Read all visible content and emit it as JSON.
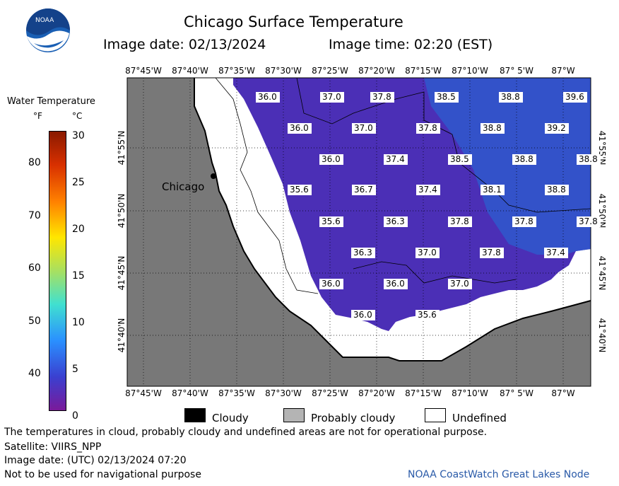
{
  "header": {
    "logo_text": "NOAA",
    "title": "Chicago Surface Temperature",
    "image_date": "Image date: 02/13/2024",
    "image_time": "Image time: 02:20 (EST)"
  },
  "colorbar": {
    "title": "Water Temperature",
    "unit_f": "°F",
    "unit_c": "°C",
    "f_ticks": [
      "80",
      "70",
      "60",
      "50",
      "40"
    ],
    "c_ticks": [
      "30",
      "25",
      "20",
      "15",
      "10",
      "5",
      "0"
    ]
  },
  "map": {
    "city_label": "Chicago",
    "lon_labels": [
      "87°45'W",
      "87°40'W",
      "87°35'W",
      "87°30'W",
      "87°25'W",
      "87°20'W",
      "87°15'W",
      "87°10'W",
      "87° 5'W",
      "87°W"
    ],
    "lat_labels": [
      "41°55'N",
      "41°50'N",
      "41°45'N",
      "41°40'N"
    ],
    "colors": {
      "land": "#787878",
      "water": "#4b2fb6",
      "water_east": "#2f58cc",
      "undefined": "#ffffff"
    },
    "temperature_labels": [
      {
        "value": "36.0",
        "row": 0,
        "col": 0
      },
      {
        "value": "37.0",
        "row": 0,
        "col": 1
      },
      {
        "value": "37.8",
        "row": 0,
        "col": 2
      },
      {
        "value": "38.5",
        "row": 0,
        "col": 3
      },
      {
        "value": "38.8",
        "row": 0,
        "col": 4
      },
      {
        "value": "39.6",
        "row": 0,
        "col": 5
      },
      {
        "value": "36.0",
        "row": 1,
        "col": 0
      },
      {
        "value": "37.0",
        "row": 1,
        "col": 1
      },
      {
        "value": "37.8",
        "row": 1,
        "col": 2
      },
      {
        "value": "38.8",
        "row": 1,
        "col": 3
      },
      {
        "value": "39.2",
        "row": 1,
        "col": 4
      },
      {
        "value": "36.0",
        "row": 2,
        "col": 0
      },
      {
        "value": "37.4",
        "row": 2,
        "col": 1
      },
      {
        "value": "38.5",
        "row": 2,
        "col": 2
      },
      {
        "value": "38.8",
        "row": 2,
        "col": 3
      },
      {
        "value": "38.8",
        "row": 2,
        "col": 4
      },
      {
        "value": "35.6",
        "row": 3,
        "col": 0
      },
      {
        "value": "36.7",
        "row": 3,
        "col": 1
      },
      {
        "value": "37.4",
        "row": 3,
        "col": 2
      },
      {
        "value": "38.1",
        "row": 3,
        "col": 3
      },
      {
        "value": "38.8",
        "row": 3,
        "col": 4
      },
      {
        "value": "35.6",
        "row": 4,
        "col": 0
      },
      {
        "value": "36.3",
        "row": 4,
        "col": 1
      },
      {
        "value": "37.8",
        "row": 4,
        "col": 2
      },
      {
        "value": "37.8",
        "row": 4,
        "col": 3
      },
      {
        "value": "37.8",
        "row": 4,
        "col": 4
      },
      {
        "value": "36.3",
        "row": 5,
        "col": 0
      },
      {
        "value": "37.0",
        "row": 5,
        "col": 1
      },
      {
        "value": "37.8",
        "row": 5,
        "col": 2
      },
      {
        "value": "37.4",
        "row": 5,
        "col": 3
      },
      {
        "value": "36.0",
        "row": 6,
        "col": 0
      },
      {
        "value": "36.0",
        "row": 6,
        "col": 1
      },
      {
        "value": "37.0",
        "row": 6,
        "col": 2
      },
      {
        "value": "36.0",
        "row": 7,
        "col": 0
      },
      {
        "value": "35.6",
        "row": 7,
        "col": 1
      }
    ]
  },
  "legend": {
    "items": [
      {
        "label": "Cloudy",
        "color": "#000000"
      },
      {
        "label": "Probably cloudy",
        "color": "#b4b4b4"
      },
      {
        "label": "Undefined",
        "color": "#ffffff"
      }
    ]
  },
  "footer": {
    "disclaimer": "The temperatures in cloud, probably cloudy and undefined areas are not for operational purpose.",
    "satellite": "Satellite: VIIRS_NPP",
    "utc_date": "Image date: (UTC) 02/13/2024  07:20",
    "nav_warning": "Not to be used for navigational purpose",
    "credit": "NOAA CoastWatch Great Lakes Node"
  }
}
